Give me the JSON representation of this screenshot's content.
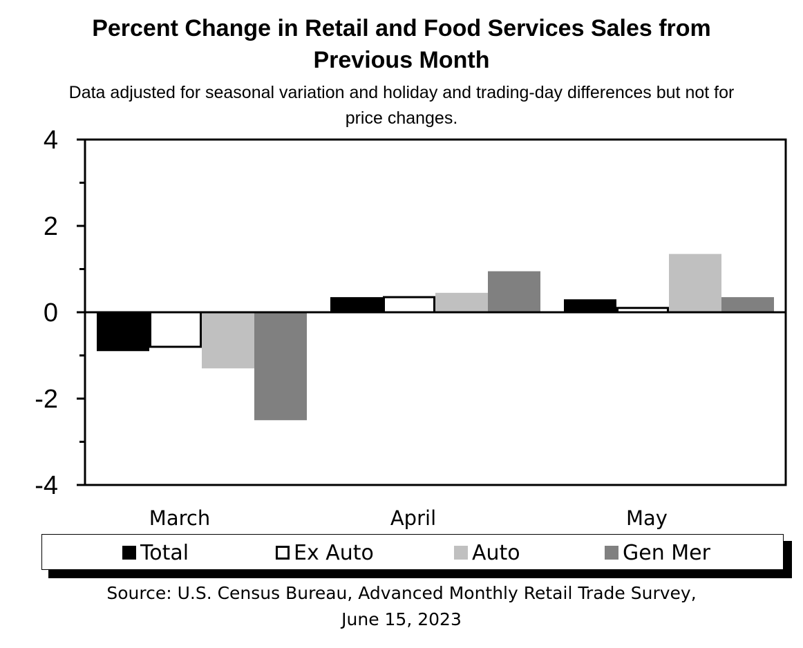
{
  "chart_data": {
    "type": "bar",
    "title_lines": [
      "Percent Change in Retail and Food Services Sales from",
      "Previous Month"
    ],
    "subtitle_lines": [
      "Data adjusted for seasonal variation and holiday and trading-day differences but not for",
      "price changes."
    ],
    "categories": [
      "March",
      "April",
      "May"
    ],
    "series": [
      {
        "name": "Total",
        "values": [
          -0.9,
          0.35,
          0.3
        ],
        "color": "#000000"
      },
      {
        "name": "Ex Auto",
        "values": [
          -0.8,
          0.35,
          0.1
        ],
        "color": "#ffffff"
      },
      {
        "name": "Auto",
        "values": [
          -1.3,
          0.45,
          1.35
        ],
        "color": "#c0c0c0"
      },
      {
        "name": "Gen Mer",
        "values": [
          -2.5,
          0.95,
          0.35
        ],
        "color": "#808080"
      }
    ],
    "ylim": [
      -4,
      4
    ],
    "ytick_labels": [
      "4",
      "2",
      "0",
      "-2",
      "-4"
    ],
    "yticks": [
      4,
      2,
      0,
      -2,
      -4
    ],
    "minor_ticks": [
      3,
      1,
      -1,
      -3
    ],
    "grid": false,
    "legend_position": "bottom",
    "source_lines": [
      "Source: U.S. Census Bureau, Advanced Monthly Retail Trade Survey,",
      "June 15, 2023"
    ]
  }
}
